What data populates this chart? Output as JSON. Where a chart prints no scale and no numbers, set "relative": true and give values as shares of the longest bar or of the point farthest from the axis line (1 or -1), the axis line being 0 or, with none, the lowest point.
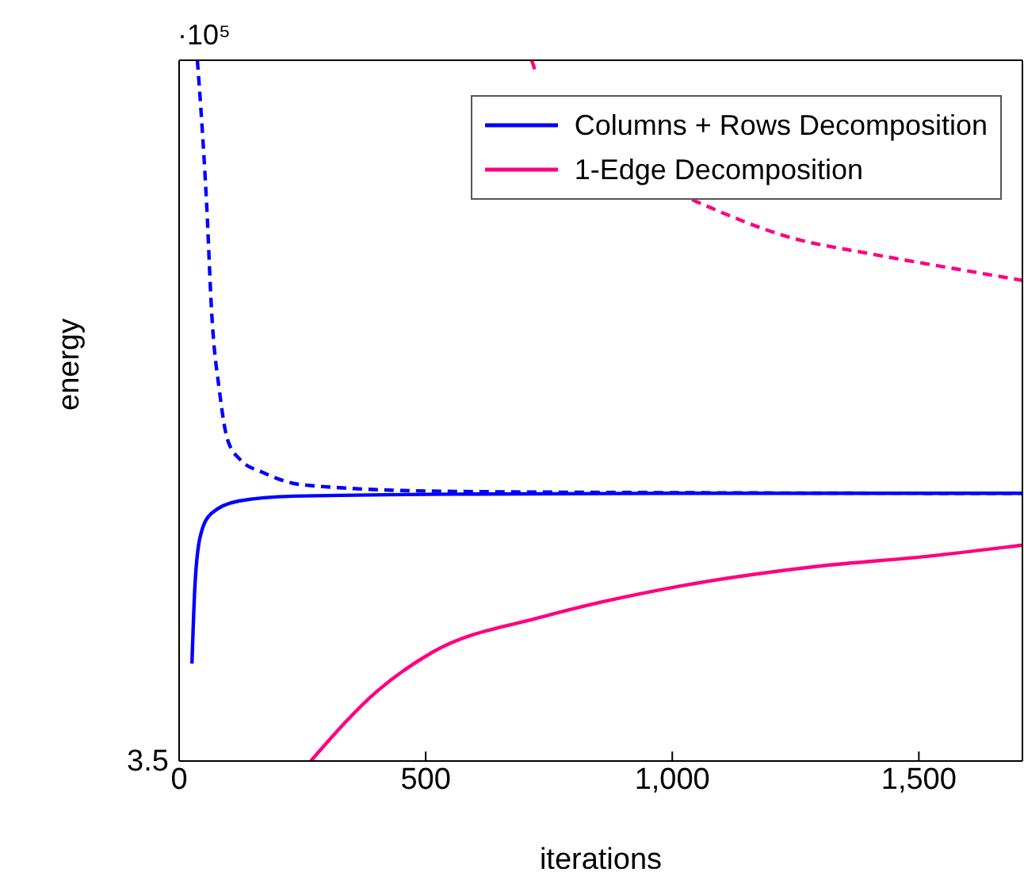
{
  "chart_data": {
    "type": "line",
    "relative": true,
    "xlabel": "iterations",
    "ylabel": "energy",
    "xlim": [
      0,
      1710
    ],
    "xticks": [
      0,
      500,
      {
        "value": 1000,
        "label": "1,000"
      },
      {
        "value": 1500,
        "label": "1,500"
      }
    ],
    "legend": "top right",
    "grid": false,
    "marker": "none",
    "annotations": [
      "·10⁵",
      "3.5"
    ],
    "series": [
      {
        "name": "Columns + Rows Decomposition",
        "color": "#0000ff",
        "line_style": "solid",
        "x": [
          26,
          32,
          43,
          65,
          121,
          233,
          600,
          1000,
          1709
        ],
        "values": [
          0.139,
          0.249,
          0.321,
          0.353,
          0.371,
          0.378,
          0.381,
          0.382,
          0.382
        ]
      },
      {
        "name": "1-Edge Decomposition",
        "color": "#ff0080",
        "line_style": "solid",
        "x": [
          267,
          402,
          513,
          738,
          1011,
          1297,
          1516,
          1709
        ],
        "values": [
          0,
          0.1,
          0.155,
          0.206,
          0.249,
          0.278,
          0.292,
          0.308
        ]
      },
      {
        "color": "#0000ff",
        "line_style": "dashed",
        "x": [
          37,
          44,
          56,
          66,
          82,
          98,
          124,
          169,
          252,
          529,
          1000,
          1709
        ],
        "values": [
          1,
          0.932,
          0.792,
          0.64,
          0.527,
          0.459,
          0.43,
          0.412,
          0.394,
          0.385,
          0.383,
          0.382
        ]
      },
      {
        "color": "#ff0080",
        "line_style": "dashed",
        "x": [
          715,
          722,
          850,
          1040,
          1240,
          1400,
          1561,
          1709
        ],
        "values": [
          1,
          0.985,
          null,
          0.801,
          0.747,
          0.724,
          0.704,
          0.686
        ]
      }
    ]
  }
}
